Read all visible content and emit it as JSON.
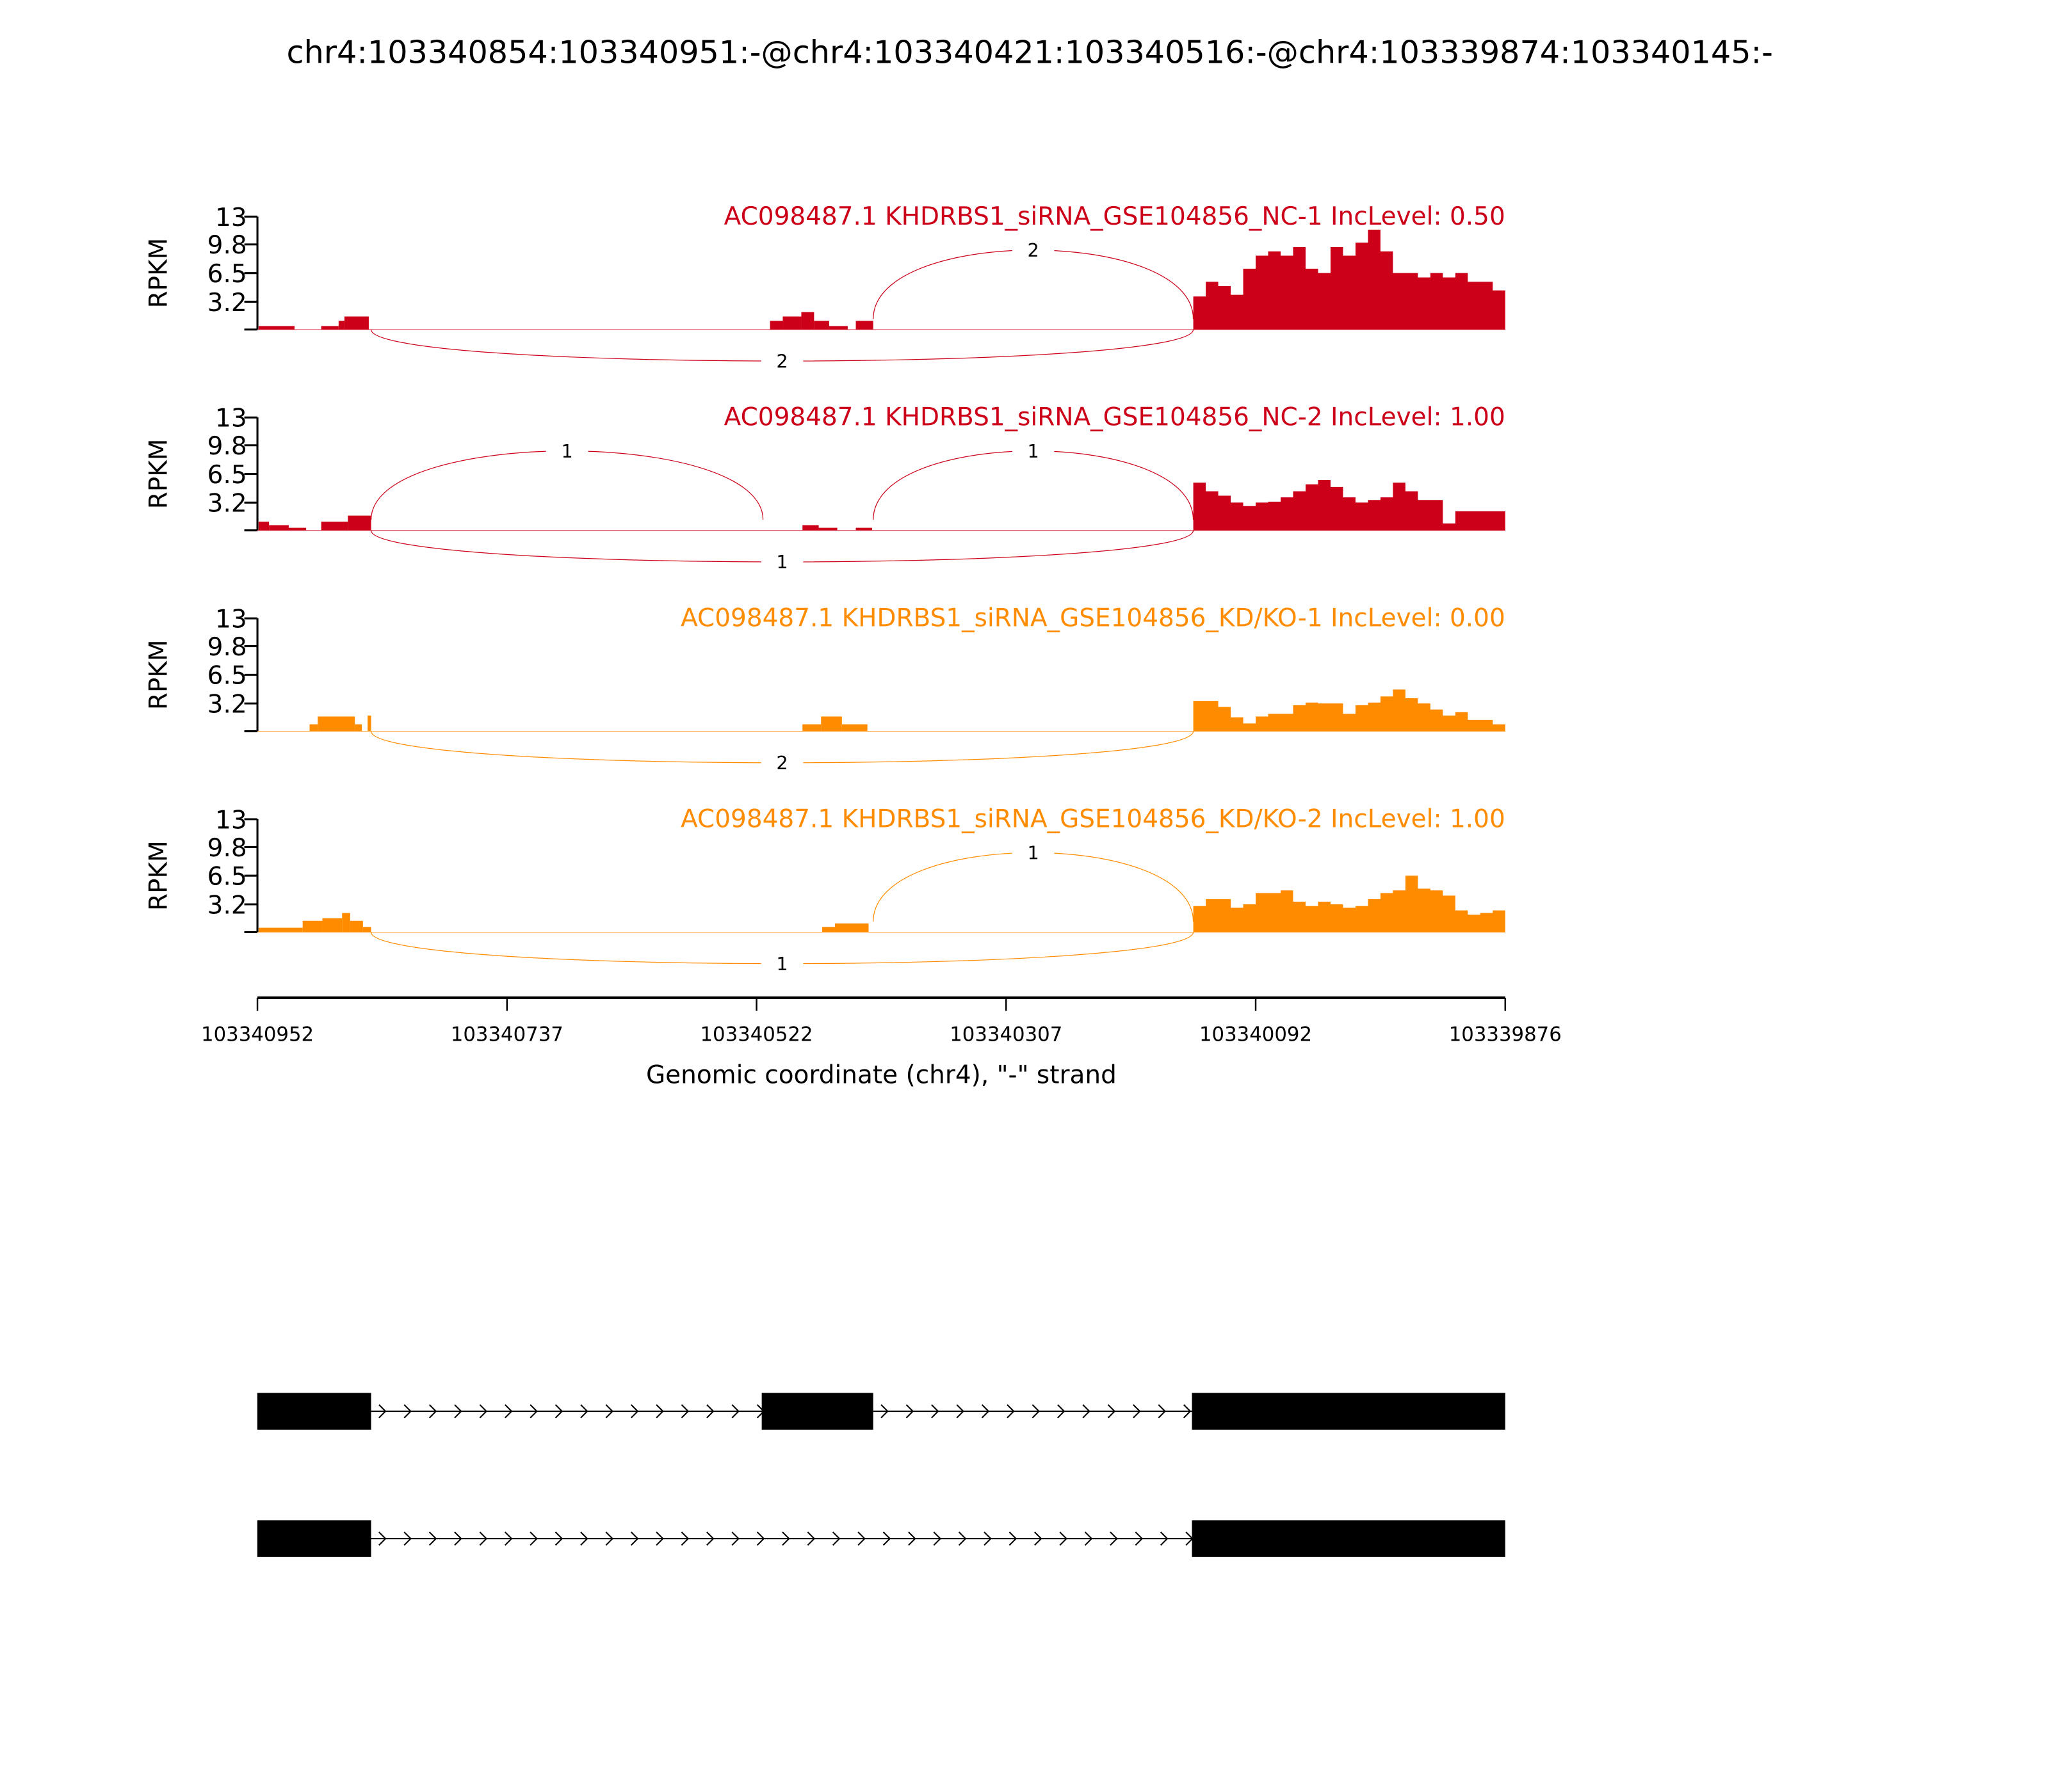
{
  "chart_data": {
    "type": "area",
    "title": "chr4:103340854:103340951:-@chr4:103340421:103340516:-@chr4:103339874:103340145:-",
    "xlabel": "Genomic coordinate (chr4), \"-\" strand",
    "ylabel": "RPKM",
    "region": {
      "start": 103340952,
      "end": 103339876
    },
    "x_ticks": [
      "103340952",
      "103340737",
      "103340522",
      "103340307",
      "103340092",
      "103339876"
    ],
    "y_ticks": [
      "13",
      "9.8",
      "6.5",
      "3.2"
    ],
    "ylim": [
      0,
      13
    ],
    "exons": [
      {
        "start": 103340951,
        "end": 103340854
      },
      {
        "start": 103340516,
        "end": 103340421
      },
      {
        "start": 103340145,
        "end": 103339874
      }
    ],
    "transcripts": [
      {
        "exons": [
          0,
          1,
          2
        ]
      },
      {
        "exons": [
          0,
          2
        ]
      }
    ],
    "colors": {
      "NC": "#CC0018",
      "KD": "#FF8C00"
    },
    "tracks": [
      {
        "label": "AC098487.1 KHDRBS1_siRNA_GSE104856_NC-1 IncLevel: 0.50",
        "color": "#CC0018",
        "steps_offset_bp": [
          [
            1,
            32,
            0.4
          ],
          [
            55,
            70,
            0.4
          ],
          [
            70,
            75,
            1.0
          ],
          [
            75,
            96,
            1.5
          ],
          [
            442,
            453,
            1.0
          ],
          [
            453,
            469,
            1.5
          ],
          [
            469,
            480,
            2.0
          ],
          [
            480,
            493,
            1.0
          ],
          [
            493,
            509,
            0.4
          ],
          [
            516,
            531,
            1.0
          ]
        ],
        "exon3_profile": [
          3.8,
          5.5,
          5,
          4,
          7,
          8.5,
          9,
          8.5,
          9.5,
          7,
          6.5,
          9.5,
          8.5,
          10,
          11.5,
          9,
          6.5,
          6.5,
          6,
          6.5,
          6,
          6.5,
          5.5,
          5.5,
          4.5
        ],
        "junctions": [
          {
            "from": 103340854,
            "to": 103340145,
            "count": "2",
            "side": "below"
          },
          {
            "from": 103340421,
            "to": 103340145,
            "count": "2",
            "side": "above"
          }
        ]
      },
      {
        "label": "AC098487.1 KHDRBS1_siRNA_GSE104856_NC-2 IncLevel: 1.00",
        "color": "#CC0018",
        "steps_offset_bp": [
          [
            1,
            10,
            1.0
          ],
          [
            10,
            27,
            0.6
          ],
          [
            27,
            42,
            0.3
          ],
          [
            55,
            78,
            1.0
          ],
          [
            78,
            98,
            1.7
          ],
          [
            470,
            484,
            0.6
          ],
          [
            484,
            500,
            0.3
          ],
          [
            516,
            530,
            0.3
          ]
        ],
        "exon3_profile": [
          5.5,
          4.5,
          4,
          3.2,
          2.8,
          3.2,
          3.3,
          3.8,
          4.5,
          5.3,
          5.8,
          5,
          3.8,
          3.2,
          3.5,
          3.8,
          5.5,
          4.5,
          3.5,
          3.5,
          0.8,
          2.2,
          2.2,
          2.2,
          2.2
        ],
        "junctions": [
          {
            "from": 103340854,
            "to": 103340516,
            "count": "1",
            "side": "above"
          },
          {
            "from": 103340854,
            "to": 103340145,
            "count": "1",
            "side": "below"
          },
          {
            "from": 103340421,
            "to": 103340145,
            "count": "1",
            "side": "above"
          }
        ]
      },
      {
        "label": "AC098487.1 KHDRBS1_siRNA_GSE104856_KD/KO-1 IncLevel: 0.00",
        "color": "#FF8C00",
        "steps_offset_bp": [
          [
            45,
            52,
            0.8
          ],
          [
            52,
            84,
            1.7
          ],
          [
            84,
            90,
            0.8
          ],
          [
            95,
            98,
            1.8
          ],
          [
            470,
            486,
            0.8
          ],
          [
            486,
            504,
            1.7
          ],
          [
            504,
            526,
            0.8
          ]
        ],
        "exon3_profile": [
          3.5,
          3.5,
          2.8,
          1.6,
          0.9,
          1.7,
          2.0,
          2.0,
          3.0,
          3.3,
          3.2,
          3.2,
          2.0,
          3.0,
          3.3,
          4.0,
          4.8,
          3.8,
          3.2,
          2.5,
          1.8,
          2.2,
          1.3,
          1.3,
          0.8
        ],
        "junctions": [
          {
            "from": 103340854,
            "to": 103340145,
            "count": "2",
            "side": "below"
          }
        ]
      },
      {
        "label": "AC098487.1 KHDRBS1_siRNA_GSE104856_KD/KO-2 IncLevel: 1.00",
        "color": "#FF8C00",
        "steps_offset_bp": [
          [
            1,
            39,
            0.5
          ],
          [
            39,
            56,
            1.3
          ],
          [
            56,
            73,
            1.6
          ],
          [
            73,
            80,
            2.2
          ],
          [
            80,
            91,
            1.3
          ],
          [
            91,
            98,
            0.6
          ],
          [
            487,
            498,
            0.6
          ],
          [
            498,
            527,
            1.0
          ]
        ],
        "exon3_profile": [
          3.0,
          3.8,
          3.8,
          2.8,
          3.2,
          4.5,
          4.5,
          4.8,
          3.5,
          3.0,
          3.5,
          3.2,
          2.8,
          3.0,
          3.8,
          4.5,
          4.8,
          6.5,
          5.0,
          4.8,
          4.2,
          2.5,
          2.0,
          2.2,
          2.5
        ],
        "junctions": [
          {
            "from": 103340854,
            "to": 103340145,
            "count": "1",
            "side": "below"
          },
          {
            "from": 103340421,
            "to": 103340145,
            "count": "1",
            "side": "above"
          }
        ]
      }
    ]
  }
}
